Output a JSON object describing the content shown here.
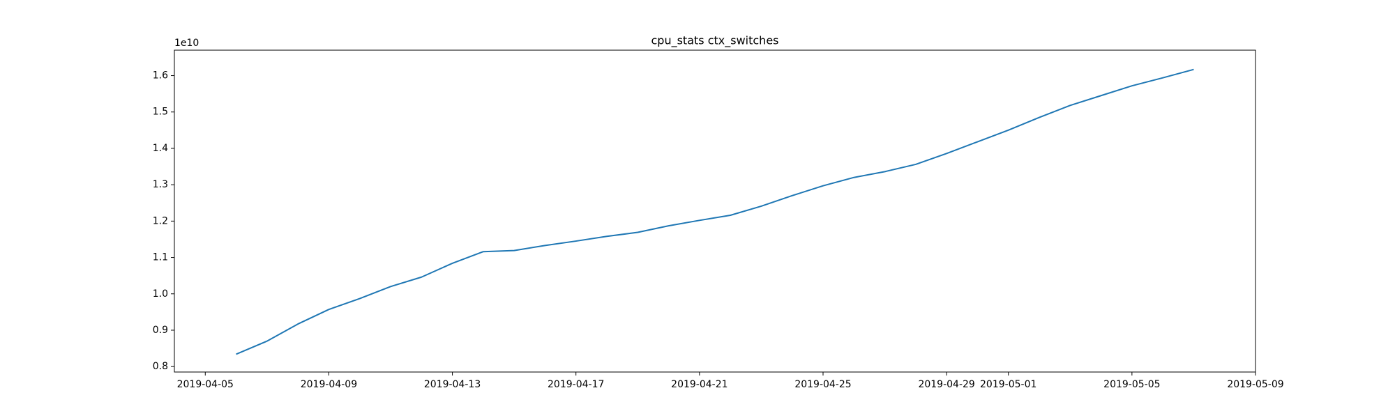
{
  "chart_data": {
    "type": "line",
    "title": "cpu_stats ctx_switches",
    "y_offset_label": "1e10",
    "x": [
      "2019-04-06",
      "2019-04-07",
      "2019-04-08",
      "2019-04-09",
      "2019-04-10",
      "2019-04-11",
      "2019-04-12",
      "2019-04-13",
      "2019-04-14",
      "2019-04-15",
      "2019-04-16",
      "2019-04-17",
      "2019-04-18",
      "2019-04-19",
      "2019-04-20",
      "2019-04-21",
      "2019-04-22",
      "2019-04-23",
      "2019-04-24",
      "2019-04-25",
      "2019-04-26",
      "2019-04-27",
      "2019-04-28",
      "2019-04-29",
      "2019-04-30",
      "2019-05-01",
      "2019-05-02",
      "2019-05-03",
      "2019-05-04",
      "2019-05-05",
      "2019-05-06",
      "2019-05-07"
    ],
    "series": [
      {
        "name": "ctx_switches",
        "color": "#1f77b4",
        "values": [
          8340000000,
          8700000000,
          9170000000,
          9570000000,
          9870000000,
          10200000000,
          10460000000,
          10840000000,
          11160000000,
          11190000000,
          11330000000,
          11450000000,
          11580000000,
          11690000000,
          11870000000,
          12020000000,
          12160000000,
          12410000000,
          12700000000,
          12970000000,
          13200000000,
          13360000000,
          13560000000,
          13860000000,
          14180000000,
          14500000000,
          14850000000,
          15180000000,
          15450000000,
          15720000000,
          15940000000,
          16170000000
        ]
      }
    ],
    "xlim": [
      "2019-04-04",
      "2019-05-09"
    ],
    "xticks": [
      "2019-04-05",
      "2019-04-09",
      "2019-04-13",
      "2019-04-17",
      "2019-04-21",
      "2019-04-25",
      "2019-04-29",
      "2019-05-01",
      "2019-05-05",
      "2019-05-09"
    ],
    "ylim": [
      7850000000,
      16700000000
    ],
    "yticks": [
      {
        "value": 8000000000,
        "label": "0.8"
      },
      {
        "value": 9000000000,
        "label": "0.9"
      },
      {
        "value": 10000000000,
        "label": "1.0"
      },
      {
        "value": 11000000000,
        "label": "1.1"
      },
      {
        "value": 12000000000,
        "label": "1.2"
      },
      {
        "value": 13000000000,
        "label": "1.3"
      },
      {
        "value": 14000000000,
        "label": "1.4"
      },
      {
        "value": 15000000000,
        "label": "1.5"
      },
      {
        "value": 16000000000,
        "label": "1.6"
      }
    ],
    "grid": false
  }
}
